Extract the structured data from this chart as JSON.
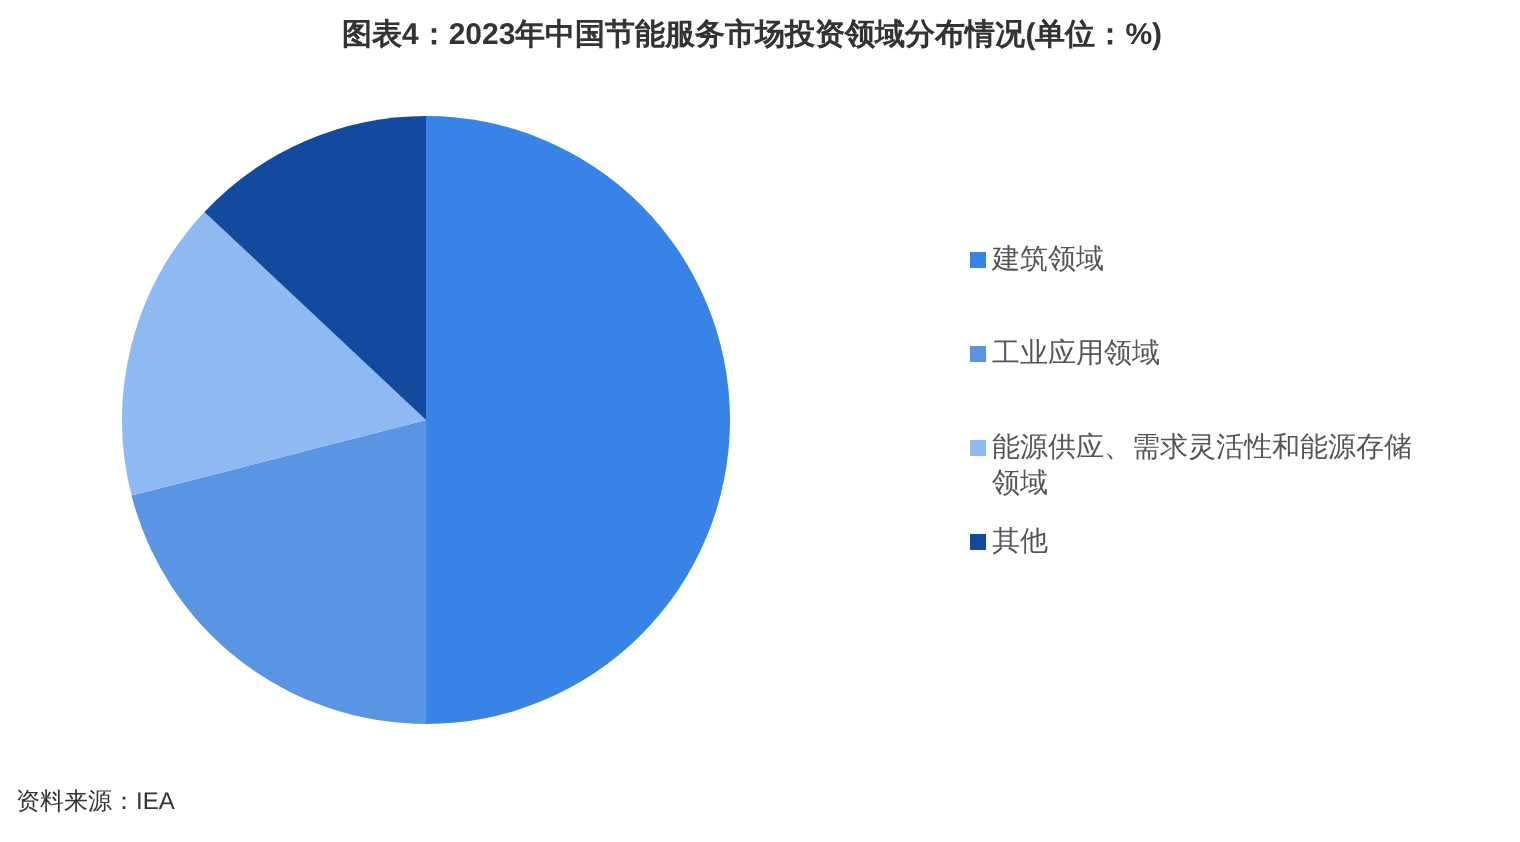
{
  "chart_data": {
    "type": "pie",
    "title": "图表4：2023年中国节能服务市场投资领域分布情况(单位：%)",
    "categories": [
      "建筑领域",
      "工业应用领域",
      "能源供应、需求灵活性和能源存储领域",
      "其他"
    ],
    "values": [
      50,
      21,
      16,
      13
    ],
    "colors": [
      "#3784e6",
      "#5a95e3",
      "#8fb9f1",
      "#134a9e"
    ],
    "legend": "right",
    "annotations": [
      "资料来源：IEA"
    ]
  }
}
